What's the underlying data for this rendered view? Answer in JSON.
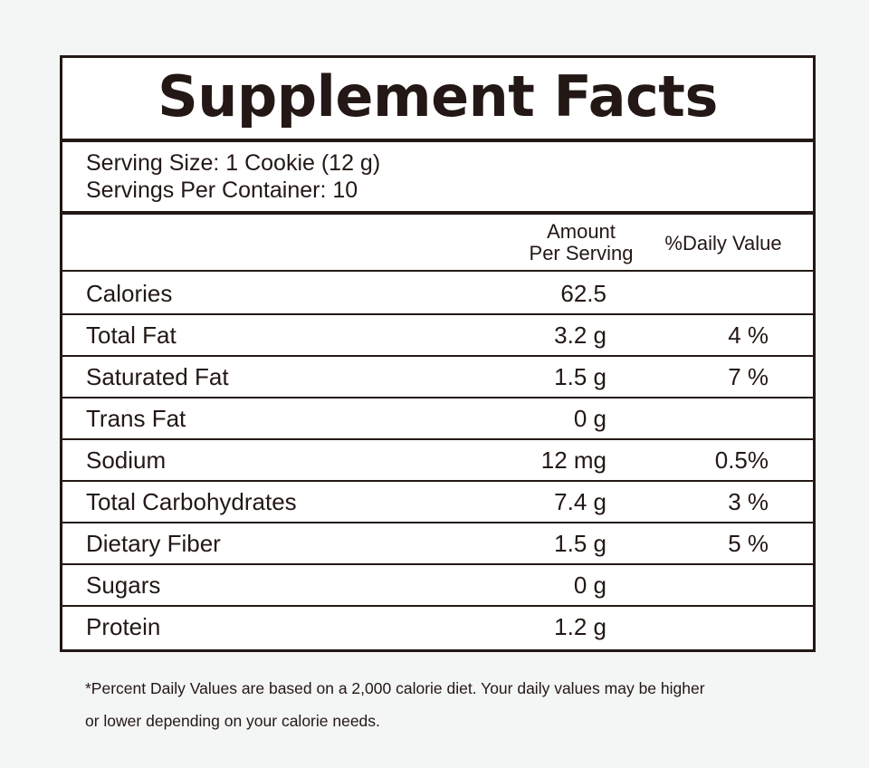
{
  "label": {
    "title": "Supplement Facts",
    "serving_size": "Serving Size: 1 Cookie (12 g)",
    "servings_per_container": "Servings Per Container: 10",
    "column_headers": {
      "amount_line1": "Amount",
      "amount_line2": "Per Serving",
      "daily_value": "%Daily Value"
    },
    "rows": [
      {
        "name": "Calories",
        "amount": "62.5",
        "daily_value": ""
      },
      {
        "name": "Total Fat",
        "amount": "3.2 g",
        "daily_value": "4 %"
      },
      {
        "name": "Saturated Fat",
        "amount": "1.5 g",
        "daily_value": "7 %"
      },
      {
        "name": "Trans Fat",
        "amount": "0 g",
        "daily_value": ""
      },
      {
        "name": "Sodium",
        "amount": "12 mg",
        "daily_value": "0.5%"
      },
      {
        "name": "Total Carbohydrates",
        "amount": "7.4 g",
        "daily_value": "3 %"
      },
      {
        "name": "Dietary Fiber",
        "amount": "1.5 g",
        "daily_value": "5 %"
      },
      {
        "name": "Sugars",
        "amount": "0 g",
        "daily_value": ""
      },
      {
        "name": "Protein",
        "amount": "1.2 g",
        "daily_value": ""
      }
    ]
  },
  "footnote": {
    "line1": "*Percent Daily Values are based on a 2,000 calorie diet. Your daily values may be higher",
    "line2": "or lower depending on your calorie needs."
  },
  "colors": {
    "ink": "#231815",
    "background": "#f4f5f5",
    "panel": "#ffffff"
  }
}
